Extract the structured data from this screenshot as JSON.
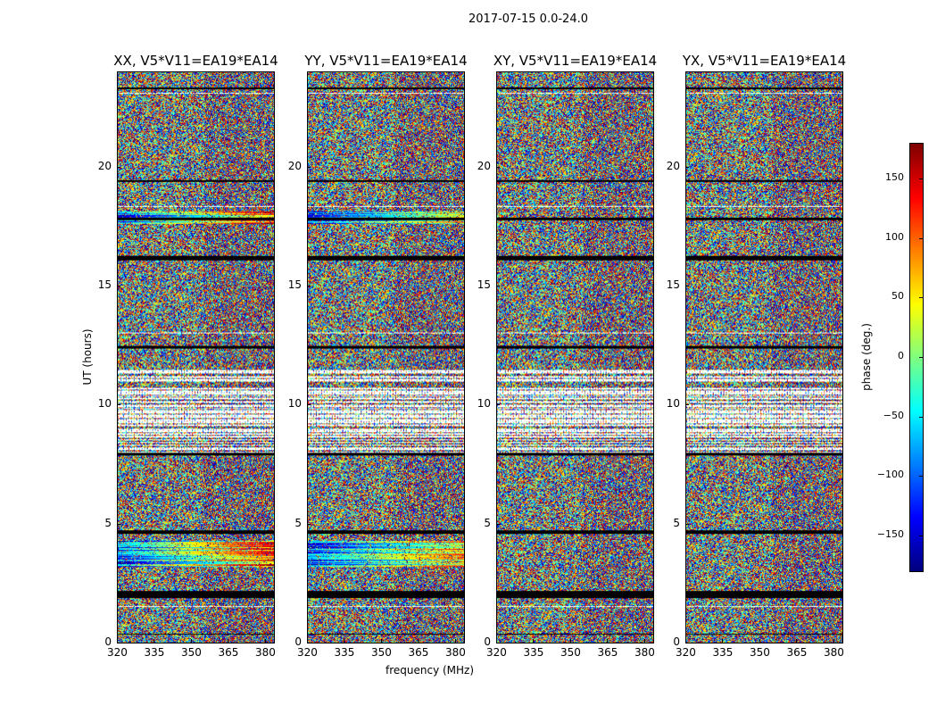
{
  "chart_data": {
    "type": "heatmap",
    "title": "2017-07-15 0.0-24.0",
    "xlabel": "frequency (MHz)",
    "ylabel": "UT (hours)",
    "xlim": [
      320,
      384
    ],
    "ylim": [
      0,
      24
    ],
    "xticks": [
      "320",
      "335",
      "350",
      "365",
      "380"
    ],
    "yticks": [
      "0",
      "5",
      "10",
      "15",
      "20"
    ],
    "panels": [
      {
        "title": "XX, V5*V11=EA19*EA14"
      },
      {
        "title": "YY, V5*V11=EA19*EA14"
      },
      {
        "title": "XY, V5*V11=EA19*EA14"
      },
      {
        "title": "YX, V5*V11=EA19*EA14"
      }
    ],
    "colorbar": {
      "label": "phase (deg.)",
      "range": [
        -180,
        180
      ],
      "colormap": "jet",
      "ticks": [
        "150",
        "100",
        "50",
        "0",
        "−50",
        "−100",
        "−150"
      ],
      "tick_values": [
        150,
        100,
        50,
        0,
        -50,
        -100,
        -150
      ]
    }
  }
}
